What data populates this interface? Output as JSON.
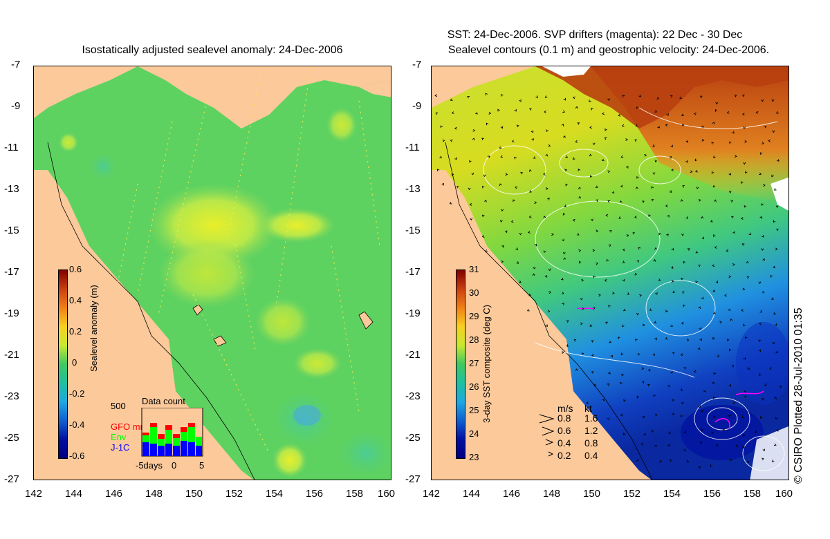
{
  "left_panel": {
    "title": "Isostatically adjusted sealevel anomaly: 24-Dec-2006",
    "colorbar": {
      "label": "Sealevel anomaly (m)",
      "ticks": [
        "0.6",
        "0.4",
        "0.2",
        "0",
        "-0.2",
        "-0.4",
        "-0.6"
      ]
    },
    "data_count": {
      "title": "Data count",
      "max_label": "500",
      "legend": [
        {
          "label": "GFO mm",
          "color": "#ff0000"
        },
        {
          "label": "Env",
          "color": "#00ff00"
        },
        {
          "label": "J-1C",
          "color": "#0000ff"
        }
      ],
      "x_labels": [
        "-5days",
        "0",
        "5"
      ]
    }
  },
  "right_panel": {
    "title_line1": "SST: 24-Dec-2006. SVP drifters (magenta): 22 Dec - 30 Dec",
    "title_line2": "Sealevel contours (0.1 m) and geostrophic velocity: 24-Dec-2006.",
    "colorbar": {
      "label": "3-day SST composite (deg C)",
      "ticks": [
        "31",
        "30",
        "29",
        "28",
        "27",
        "26",
        "25",
        "24",
        "23"
      ]
    },
    "speed_legend": {
      "header": [
        "m/s",
        "kt"
      ],
      "rows": [
        [
          "0.8",
          "1.6"
        ],
        [
          "0.6",
          "1.2"
        ],
        [
          "0.4",
          "0.8"
        ],
        [
          "0.2",
          "0.4"
        ]
      ]
    }
  },
  "axes": {
    "y_ticks": [
      "-7",
      "-9",
      "-11",
      "-13",
      "-15",
      "-17",
      "-19",
      "-21",
      "-23",
      "-25",
      "-27"
    ],
    "x_ticks": [
      "142",
      "144",
      "146",
      "148",
      "150",
      "152",
      "154",
      "156",
      "158",
      "160"
    ]
  },
  "credit": "© CSIRO Plotted 28-Jul-2010 01:35"
}
